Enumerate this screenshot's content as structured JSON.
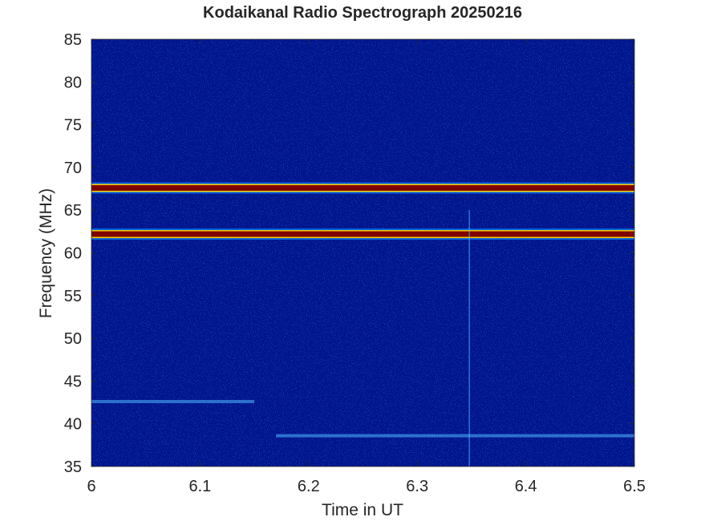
{
  "chart_data": {
    "type": "heatmap",
    "title": "Kodaikanal Radio Spectrograph  20250216",
    "xlabel": "Time in UT",
    "ylabel": "Frequency (MHz)",
    "xlim": [
      6,
      6.5
    ],
    "ylim": [
      35,
      85
    ],
    "x_ticks": [
      "6",
      "6.1",
      "6.2",
      "6.3",
      "6.4",
      "6.5"
    ],
    "y_ticks": [
      "35",
      "40",
      "45",
      "50",
      "55",
      "60",
      "65",
      "70",
      "75",
      "80",
      "85"
    ],
    "colormap": "jet",
    "grid": false,
    "background_level": "low (dark blue noise)",
    "features": [
      {
        "kind": "continuous-band",
        "frequency_mhz": 67.6,
        "time_range": [
          6.0,
          6.5
        ],
        "intensity": "high (dark red)"
      },
      {
        "kind": "continuous-band",
        "frequency_mhz": 62.2,
        "time_range": [
          6.0,
          6.5
        ],
        "intensity": "high (dark red)"
      },
      {
        "kind": "weak-band",
        "frequency_mhz": 38.6,
        "time_range": [
          6.17,
          6.5
        ],
        "intensity": "low-medium (cyan speckle)"
      },
      {
        "kind": "weak-band",
        "frequency_mhz": 42.6,
        "time_range": [
          6.0,
          6.15
        ],
        "intensity": "low (light blue)"
      },
      {
        "kind": "vertical-line",
        "time_ut": 6.348,
        "frequency_range": [
          35,
          65
        ],
        "intensity": "low (light blue)"
      }
    ]
  },
  "colors": {
    "background": "#00148c",
    "band_core": "#7f0000",
    "band_edge": "#ffd200",
    "axis": "#262626"
  }
}
